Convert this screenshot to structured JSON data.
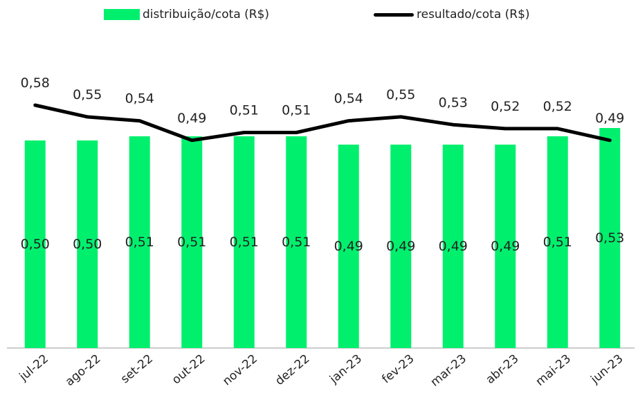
{
  "colors": {
    "bar": "#00F06E",
    "line": "#000000",
    "text": "#222222",
    "axis": "#999999"
  },
  "chart_data": {
    "type": "bar",
    "categories": [
      "jul-22",
      "ago-22",
      "set-22",
      "out-22",
      "nov-22",
      "dez-22",
      "jan-23",
      "fev-23",
      "mar-23",
      "abr-23",
      "mai-23",
      "jun-23"
    ],
    "series": [
      {
        "name": "distribuição/cota (R$)",
        "type": "bar",
        "values": [
          0.5,
          0.5,
          0.51,
          0.51,
          0.51,
          0.51,
          0.49,
          0.49,
          0.49,
          0.49,
          0.51,
          0.53
        ],
        "labels": [
          "0,50",
          "0,50",
          "0,51",
          "0,51",
          "0,51",
          "0,51",
          "0,49",
          "0,49",
          "0,49",
          "0,49",
          "0,51",
          "0,53"
        ]
      },
      {
        "name": "resultado/cota (R$)",
        "type": "line",
        "values": [
          0.58,
          0.55,
          0.54,
          0.49,
          0.51,
          0.51,
          0.54,
          0.55,
          0.53,
          0.52,
          0.52,
          0.49
        ],
        "labels": [
          "0,58",
          "0,55",
          "0,54",
          "0,49",
          "0,51",
          "0,51",
          "0,54",
          "0,55",
          "0,53",
          "0,52",
          "0,52",
          "0,49"
        ]
      }
    ],
    "legend": "top",
    "grid": false
  }
}
